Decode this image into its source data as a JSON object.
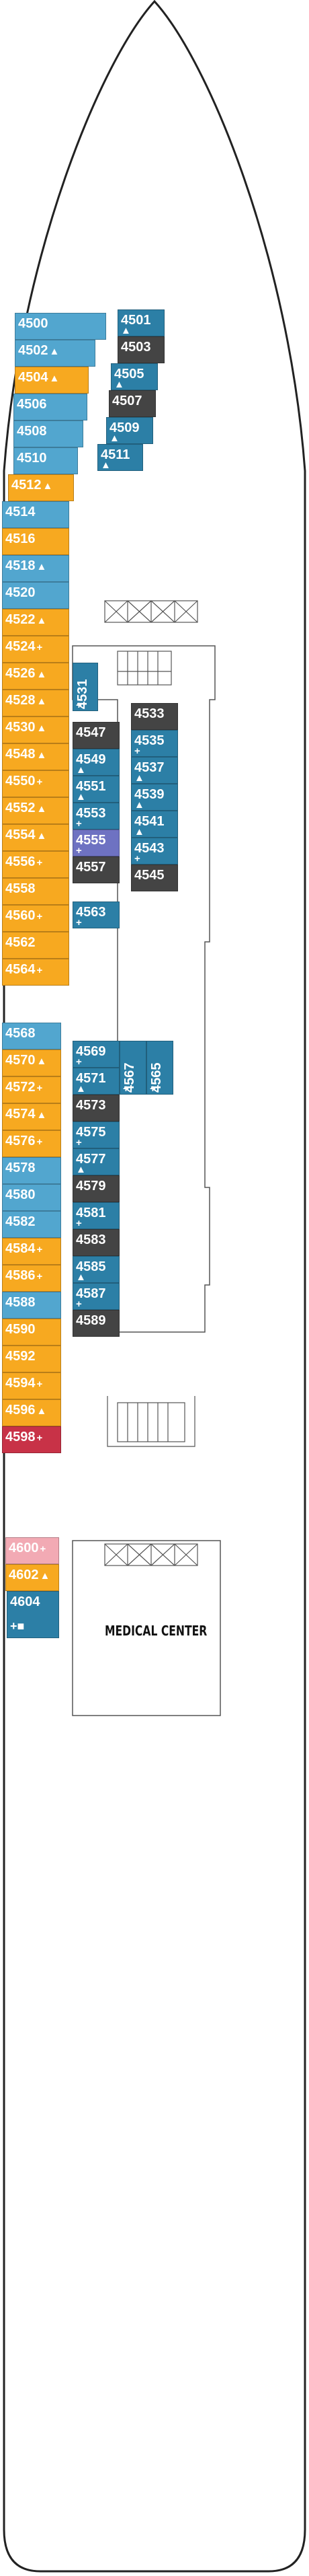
{
  "colors": {
    "blue": "#52a6cf",
    "teal": "#2c7fa6",
    "dark": "#444444",
    "orange": "#f7a920",
    "red": "#c83247",
    "pink": "#f2aab4",
    "purple": "#6e72c2",
    "hull_stroke": "#222222",
    "line": "#555555"
  },
  "symbols": {
    "triangle": "▲",
    "plus": "+",
    "square": "■"
  },
  "areas": {
    "medical": "MEDICAL CENTER"
  },
  "cabins": [
    {
      "id": "4500",
      "color": "blue",
      "mark": ""
    },
    {
      "id": "4502",
      "color": "blue",
      "mark": "triangle"
    },
    {
      "id": "4504",
      "color": "orange",
      "mark": "triangle"
    },
    {
      "id": "4506",
      "color": "blue",
      "mark": ""
    },
    {
      "id": "4508",
      "color": "blue",
      "mark": ""
    },
    {
      "id": "4510",
      "color": "blue",
      "mark": ""
    },
    {
      "id": "4512",
      "color": "orange",
      "mark": "triangle"
    },
    {
      "id": "4514",
      "color": "blue",
      "mark": ""
    },
    {
      "id": "4516",
      "color": "orange",
      "mark": ""
    },
    {
      "id": "4518",
      "color": "blue",
      "mark": "triangle"
    },
    {
      "id": "4520",
      "color": "blue",
      "mark": ""
    },
    {
      "id": "4522",
      "color": "orange",
      "mark": "triangle"
    },
    {
      "id": "4524",
      "color": "orange",
      "mark": "plus"
    },
    {
      "id": "4526",
      "color": "orange",
      "mark": "triangle"
    },
    {
      "id": "4528",
      "color": "orange",
      "mark": "triangle"
    },
    {
      "id": "4530",
      "color": "orange",
      "mark": "triangle"
    },
    {
      "id": "4548",
      "color": "orange",
      "mark": "triangle"
    },
    {
      "id": "4550",
      "color": "orange",
      "mark": "plus"
    },
    {
      "id": "4552",
      "color": "orange",
      "mark": "triangle"
    },
    {
      "id": "4554",
      "color": "orange",
      "mark": "triangle"
    },
    {
      "id": "4556",
      "color": "orange",
      "mark": "plus"
    },
    {
      "id": "4558",
      "color": "orange",
      "mark": ""
    },
    {
      "id": "4560",
      "color": "orange",
      "mark": "plus"
    },
    {
      "id": "4562",
      "color": "orange",
      "mark": ""
    },
    {
      "id": "4564",
      "color": "orange",
      "mark": "plus"
    },
    {
      "id": "4568",
      "color": "blue",
      "mark": ""
    },
    {
      "id": "4570",
      "color": "orange",
      "mark": "triangle"
    },
    {
      "id": "4572",
      "color": "orange",
      "mark": "plus"
    },
    {
      "id": "4574",
      "color": "orange",
      "mark": "triangle"
    },
    {
      "id": "4576",
      "color": "orange",
      "mark": "plus"
    },
    {
      "id": "4578",
      "color": "blue",
      "mark": ""
    },
    {
      "id": "4580",
      "color": "blue",
      "mark": ""
    },
    {
      "id": "4582",
      "color": "blue",
      "mark": ""
    },
    {
      "id": "4584",
      "color": "orange",
      "mark": "plus"
    },
    {
      "id": "4586",
      "color": "orange",
      "mark": "plus"
    },
    {
      "id": "4588",
      "color": "blue",
      "mark": ""
    },
    {
      "id": "4590",
      "color": "orange",
      "mark": ""
    },
    {
      "id": "4592",
      "color": "orange",
      "mark": ""
    },
    {
      "id": "4594",
      "color": "orange",
      "mark": "plus"
    },
    {
      "id": "4596",
      "color": "orange",
      "mark": "triangle"
    },
    {
      "id": "4598",
      "color": "red",
      "mark": "plus"
    },
    {
      "id": "4600",
      "color": "pink",
      "mark": "plus"
    },
    {
      "id": "4602",
      "color": "orange",
      "mark": "triangle"
    },
    {
      "id": "4604",
      "color": "teal",
      "mark": "plus-square"
    },
    {
      "id": "4501",
      "color": "teal",
      "mark": "triangle"
    },
    {
      "id": "4503",
      "color": "dark",
      "mark": ""
    },
    {
      "id": "4505",
      "color": "teal",
      "mark": "triangle"
    },
    {
      "id": "4507",
      "color": "dark",
      "mark": ""
    },
    {
      "id": "4509",
      "color": "teal",
      "mark": "triangle"
    },
    {
      "id": "4511",
      "color": "teal",
      "mark": "triangle"
    },
    {
      "id": "4531",
      "color": "teal",
      "mark": "plus"
    },
    {
      "id": "4533",
      "color": "dark",
      "mark": ""
    },
    {
      "id": "4535",
      "color": "teal",
      "mark": "plus"
    },
    {
      "id": "4537",
      "color": "teal",
      "mark": "triangle"
    },
    {
      "id": "4539",
      "color": "teal",
      "mark": "triangle"
    },
    {
      "id": "4541",
      "color": "teal",
      "mark": "triangle"
    },
    {
      "id": "4543",
      "color": "teal",
      "mark": "plus"
    },
    {
      "id": "4545",
      "color": "dark",
      "mark": ""
    },
    {
      "id": "4547",
      "color": "dark",
      "mark": ""
    },
    {
      "id": "4549",
      "color": "teal",
      "mark": "triangle"
    },
    {
      "id": "4551",
      "color": "teal",
      "mark": "triangle"
    },
    {
      "id": "4553",
      "color": "teal",
      "mark": "plus"
    },
    {
      "id": "4555",
      "color": "purple",
      "mark": "plus"
    },
    {
      "id": "4557",
      "color": "dark",
      "mark": ""
    },
    {
      "id": "4563",
      "color": "teal",
      "mark": "plus"
    },
    {
      "id": "4569",
      "color": "teal",
      "mark": "plus"
    },
    {
      "id": "4567",
      "color": "teal",
      "mark": "plus"
    },
    {
      "id": "4565",
      "color": "teal",
      "mark": "plus"
    },
    {
      "id": "4571",
      "color": "teal",
      "mark": "triangle"
    },
    {
      "id": "4573",
      "color": "dark",
      "mark": ""
    },
    {
      "id": "4575",
      "color": "teal",
      "mark": "plus"
    },
    {
      "id": "4577",
      "color": "teal",
      "mark": "triangle"
    },
    {
      "id": "4579",
      "color": "dark",
      "mark": ""
    },
    {
      "id": "4581",
      "color": "teal",
      "mark": "plus"
    },
    {
      "id": "4583",
      "color": "dark",
      "mark": ""
    },
    {
      "id": "4585",
      "color": "teal",
      "mark": "triangle"
    },
    {
      "id": "4587",
      "color": "teal",
      "mark": "plus"
    },
    {
      "id": "4589",
      "color": "dark",
      "mark": ""
    }
  ]
}
